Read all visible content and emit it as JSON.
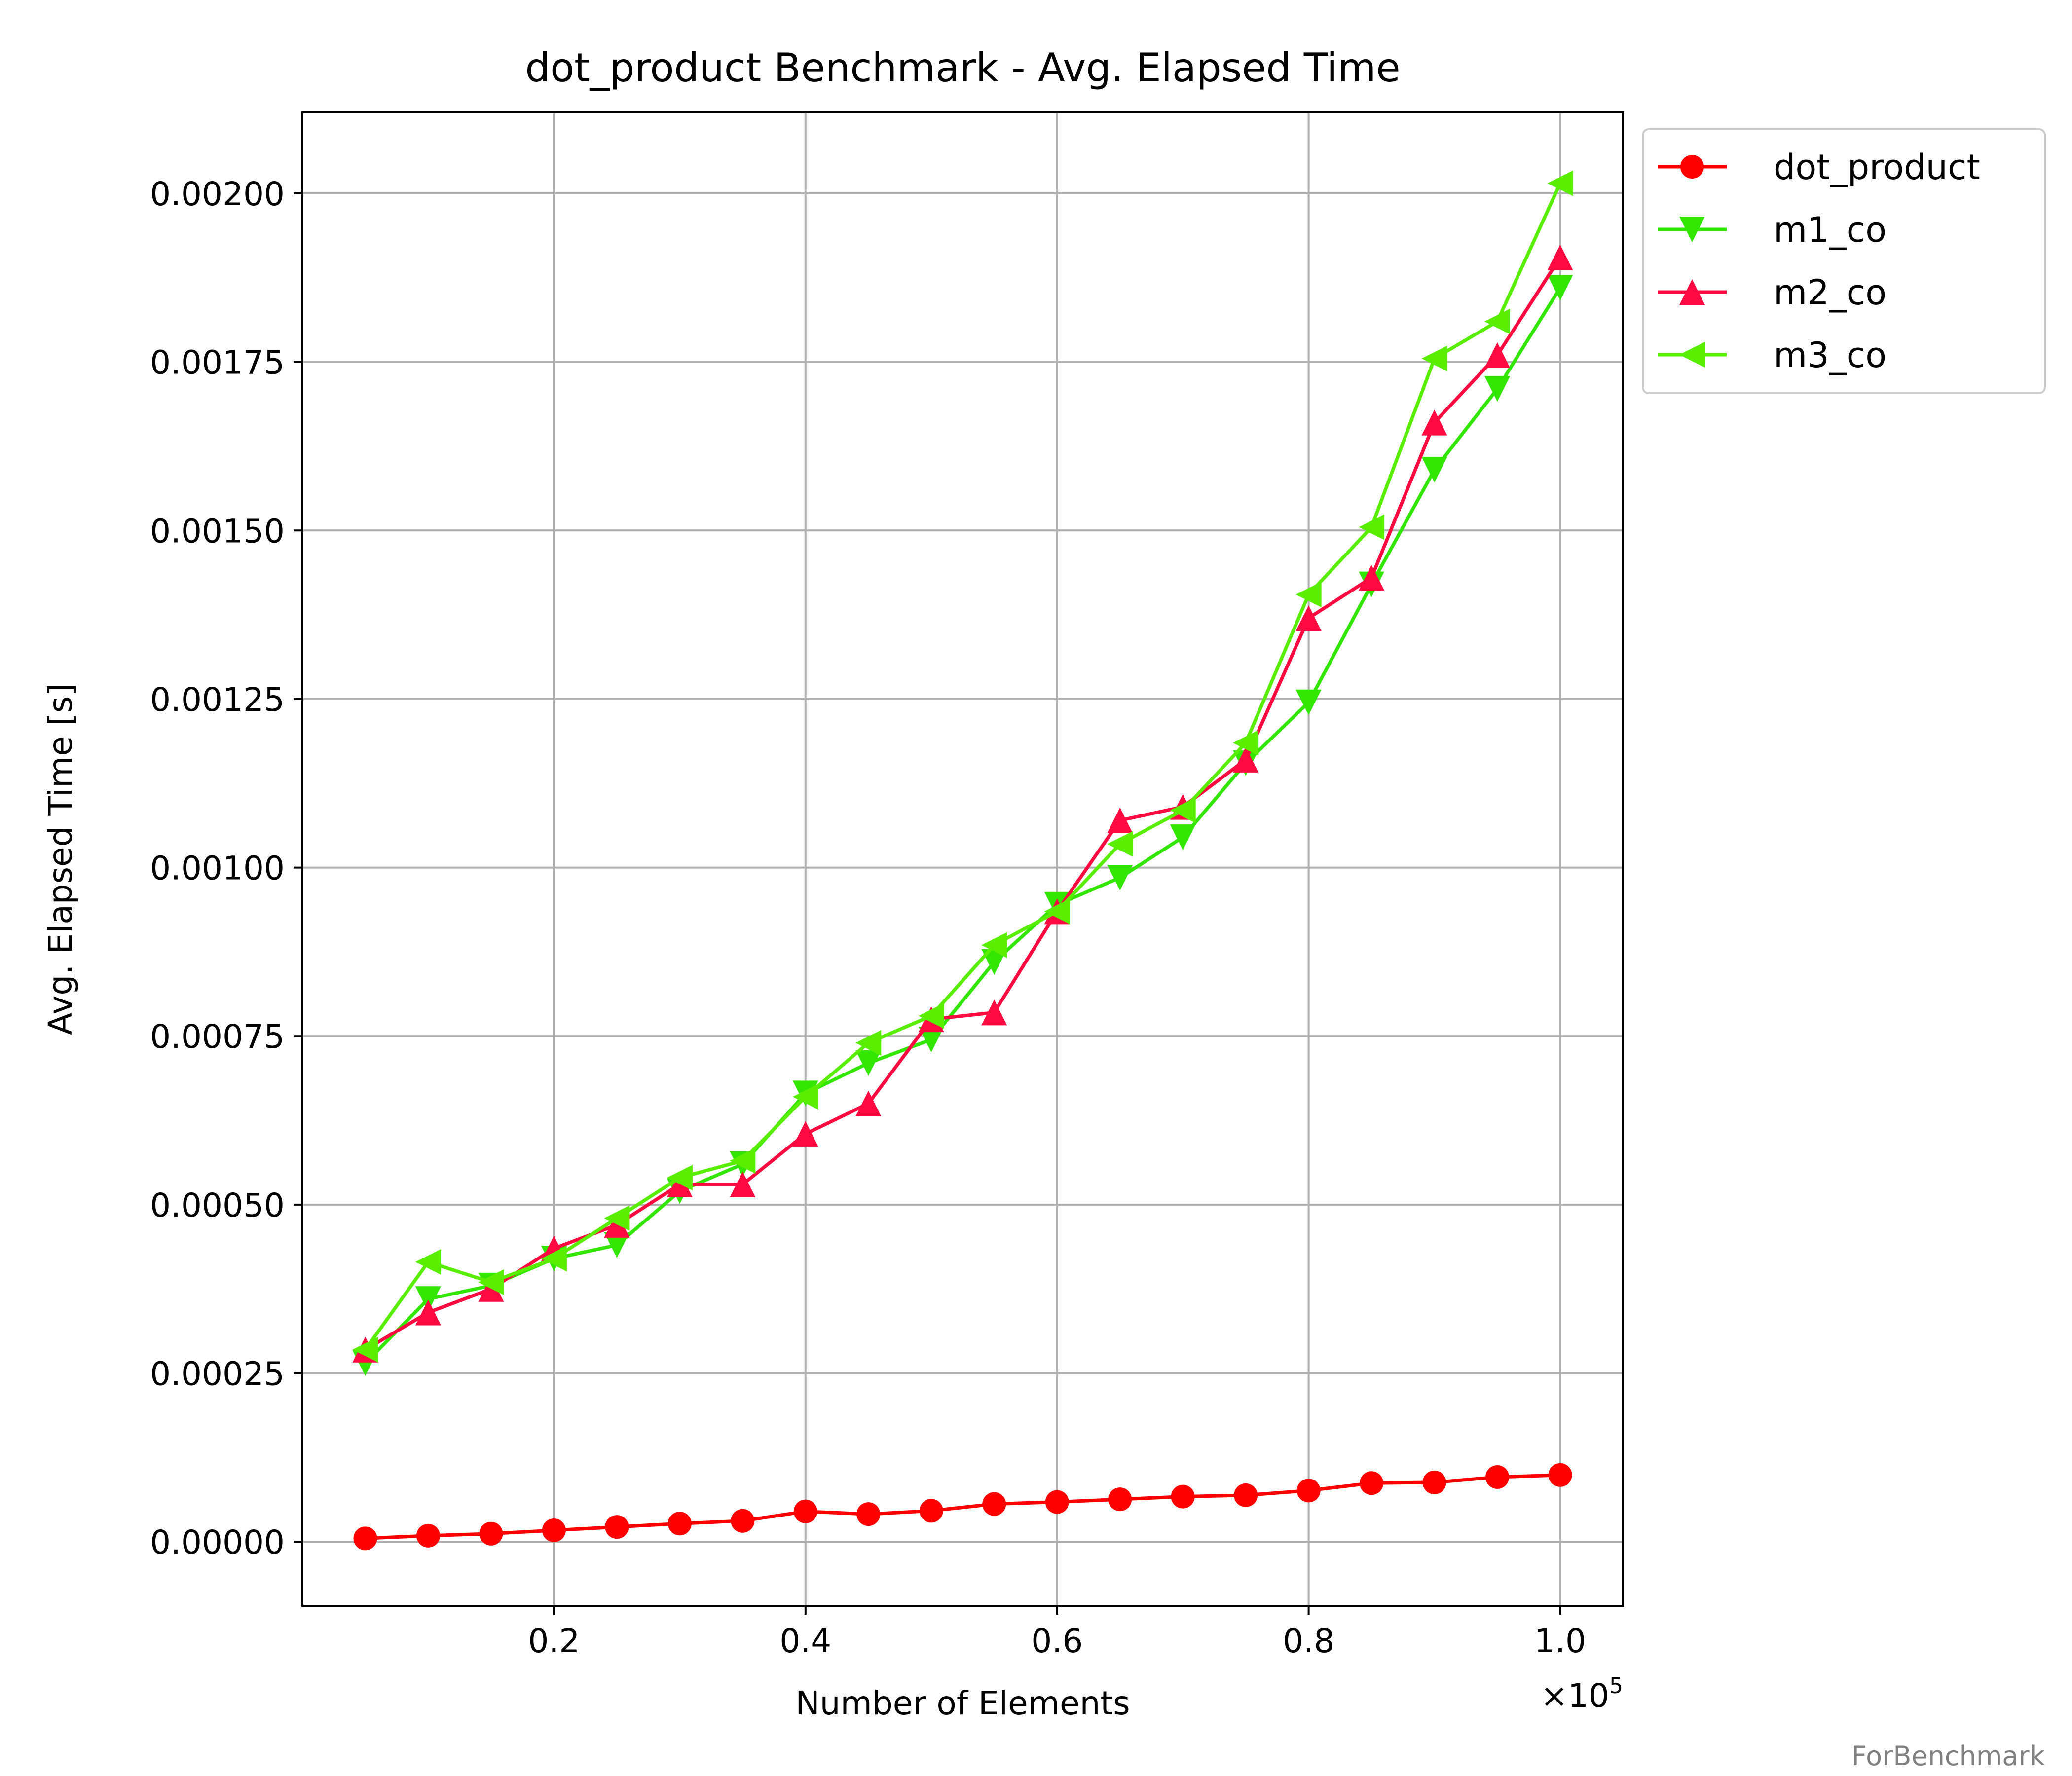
{
  "chart_data": {
    "type": "line",
    "title": "dot_product Benchmark - Avg. Elapsed Time",
    "xlabel": "Number of Elements",
    "ylabel": "Avg. Elapsed Time [s]",
    "x_offset_label": "×10",
    "x_offset_exponent": "5",
    "x_ticks": [
      0.2,
      0.4,
      0.6,
      0.8,
      1.0
    ],
    "x_tick_labels": [
      "0.2",
      "0.4",
      "0.6",
      "0.8",
      "1.0"
    ],
    "y_ticks": [
      0,
      0.00025,
      0.0005,
      0.00075,
      0.001,
      0.00125,
      0.0015,
      0.00175,
      0.002
    ],
    "y_tick_labels": [
      "0.00000",
      "0.00025",
      "0.00050",
      "0.00075",
      "0.00100",
      "0.00125",
      "0.00150",
      "0.00175",
      "0.00200"
    ],
    "xlim": [
      0.0,
      1.05
    ],
    "ylim": [
      -9.5e-05,
      0.00212
    ],
    "grid": true,
    "legend_position": "outside-top-right",
    "x": [
      0.05,
      0.1,
      0.15,
      0.2,
      0.25,
      0.3,
      0.35,
      0.4,
      0.45,
      0.5,
      0.55,
      0.6,
      0.65,
      0.7,
      0.75,
      0.8,
      0.85,
      0.9,
      0.95,
      1.0
    ],
    "series": [
      {
        "name": "dot_product",
        "color": "#ff0000",
        "marker": "circle",
        "values": [
          5e-06,
          9e-06,
          1.2e-05,
          1.7e-05,
          2.2e-05,
          2.7e-05,
          3.1e-05,
          4.5e-05,
          4.1e-05,
          4.6e-05,
          5.6e-05,
          5.9e-05,
          6.3e-05,
          6.7e-05,
          6.9e-05,
          7.6e-05,
          8.7e-05,
          8.8e-05,
          9.6e-05,
          9.9e-05
        ]
      },
      {
        "name": "m1_co",
        "color": "#33e600",
        "marker": "triangle-down",
        "values": [
          0.000265,
          0.00036,
          0.00038,
          0.00042,
          0.00044,
          0.00052,
          0.00056,
          0.000665,
          0.00071,
          0.000745,
          0.00086,
          0.000945,
          0.000985,
          0.001045,
          0.001155,
          0.001245,
          0.00142,
          0.00159,
          0.00171,
          0.00186
        ]
      },
      {
        "name": "m2_co",
        "color": "#ff0a40",
        "marker": "triangle-up",
        "values": [
          0.000285,
          0.00034,
          0.000375,
          0.000435,
          0.00047,
          0.00053,
          0.00053,
          0.000605,
          0.00065,
          0.000775,
          0.000785,
          0.000935,
          0.00107,
          0.00109,
          0.00116,
          0.00137,
          0.00143,
          0.00166,
          0.00176,
          0.001905
        ]
      },
      {
        "name": "m3_co",
        "color": "#59ee00",
        "marker": "triangle-left",
        "values": [
          0.000285,
          0.000415,
          0.000385,
          0.00042,
          0.00048,
          0.00054,
          0.000565,
          0.00066,
          0.00074,
          0.00078,
          0.000885,
          0.000935,
          0.001035,
          0.001085,
          0.001185,
          0.001405,
          0.001505,
          0.001755,
          0.00181,
          0.002015
        ]
      }
    ]
  },
  "watermark": "ForBenchmark"
}
